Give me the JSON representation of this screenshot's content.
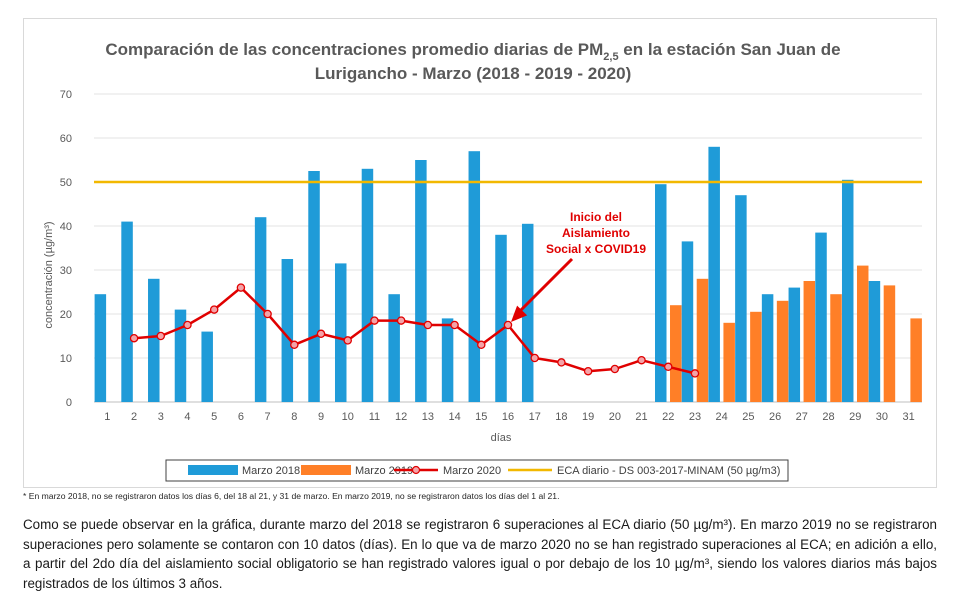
{
  "chart_data": {
    "type": "bar",
    "title": "Comparación de las concentraciones promedio diarias de PM2,5 en la estación San Juan de Lurigancho - Marzo (2018 - 2019 - 2020)",
    "title_parts": {
      "line1_prefix": "Comparación de las concentraciones promedio diarias de PM",
      "line1_sub": "2,5",
      "line1_suffix": " en la estación San Juan de",
      "line2": "Lurigancho - Marzo (2018 - 2019 - 2020)"
    },
    "xlabel": "días",
    "ylabel": "concentración (µg/m³)",
    "ylim": [
      0,
      70
    ],
    "yticks": [
      0,
      10,
      20,
      30,
      40,
      50,
      60,
      70
    ],
    "grid": true,
    "legend_position": "bottom",
    "categories": [
      "1",
      "2",
      "3",
      "4",
      "5",
      "6",
      "7",
      "8",
      "9",
      "10",
      "11",
      "12",
      "13",
      "14",
      "15",
      "16",
      "17",
      "18",
      "19",
      "20",
      "21",
      "22",
      "23",
      "24",
      "25",
      "26",
      "27",
      "28",
      "29",
      "30",
      "31"
    ],
    "series": [
      {
        "name": "Marzo 2018",
        "kind": "bar",
        "color": "#1f9bd8",
        "values": [
          24.5,
          41,
          28,
          21,
          16,
          null,
          42,
          32.5,
          52.5,
          31.5,
          53,
          24.5,
          55,
          19,
          57,
          38,
          40.5,
          null,
          null,
          null,
          null,
          49.5,
          36.5,
          58,
          47,
          24.5,
          26,
          38.5,
          50.5,
          27.5,
          null
        ]
      },
      {
        "name": "Marzo 2019",
        "kind": "bar",
        "color": "#ff7f27",
        "values": [
          null,
          null,
          null,
          null,
          null,
          null,
          null,
          null,
          null,
          null,
          null,
          null,
          null,
          null,
          null,
          null,
          null,
          null,
          null,
          null,
          null,
          22,
          28,
          18,
          20.5,
          23,
          27.5,
          24.5,
          31,
          26.5,
          19
        ]
      },
      {
        "name": "Marzo 2020",
        "kind": "line",
        "color": "#e00000",
        "marker_fill": "#f4a3a8",
        "values": [
          null,
          14.5,
          15,
          17.5,
          21,
          26,
          20,
          13,
          15.5,
          14,
          18.5,
          18.5,
          17.5,
          17.5,
          13,
          17.5,
          10,
          9,
          7,
          7.5,
          9.5,
          8,
          6.5,
          null,
          null,
          null,
          null,
          null,
          null,
          null,
          null
        ]
      },
      {
        "name": "ECA diario - DS 003-2017-MINAM (50 µg/m3)",
        "kind": "reference-line",
        "color": "#f2b800",
        "value": 50
      }
    ],
    "annotation": {
      "lines": [
        "Inicio del",
        "Aislamiento",
        "Social x COVID19"
      ],
      "color": "#e00000",
      "points_to_day": "16"
    }
  },
  "footnote": "* En marzo 2018, no se registraron datos los días 6, del 18 al 21, y 31 de marzo. En marzo 2019, no se registraron datos los días del 1 al 21.",
  "paragraph": "Como se puede observar en la gráfica, durante marzo del 2018 se registraron 6 superaciones al ECA diario (50 µg/m³). En marzo 2019 no se registraron superaciones pero solamente se contaron con 10 datos (días). En lo que va de marzo 2020 no se han registrado superaciones al ECA; en adición a ello, a partir del 2do día del aislamiento social obligatorio se han registrado valores igual o por debajo de los 10 µg/m³, siendo los valores diarios más bajos registrados de los últimos 3 años."
}
